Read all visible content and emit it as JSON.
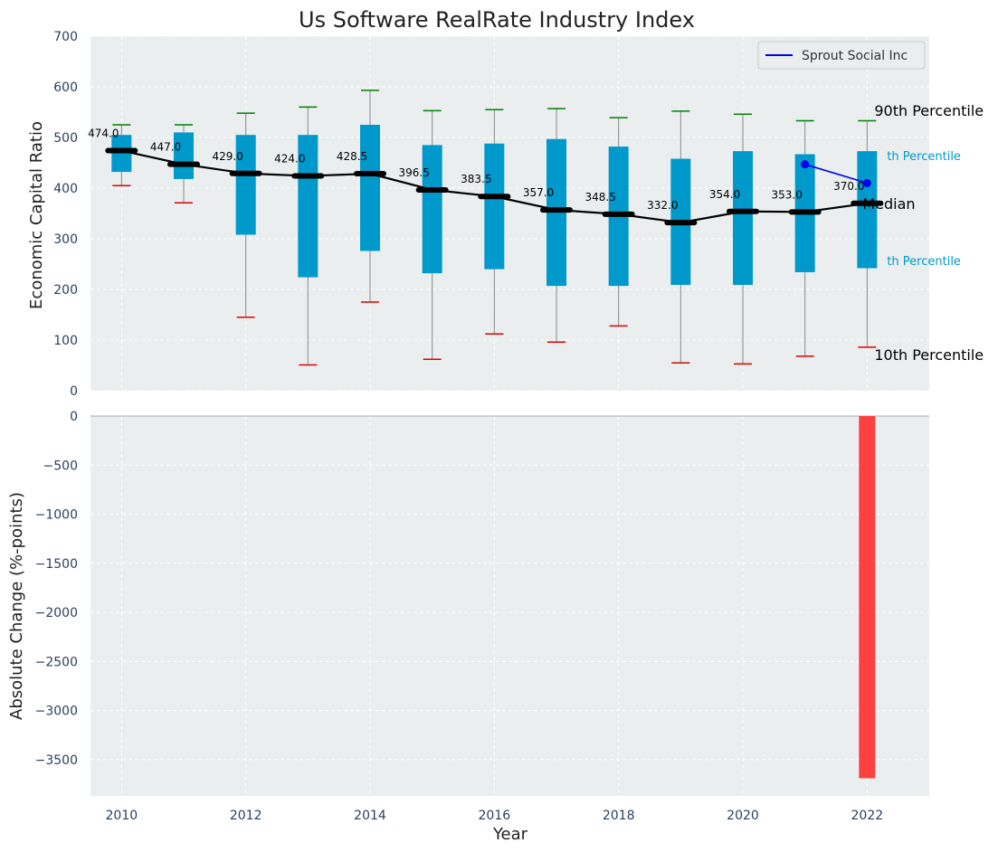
{
  "chart_data": [
    {
      "type": "box",
      "title": "Us Software RealRate Industry Index",
      "ylabel": "Economic Capital Ratio",
      "ylim": [
        0,
        700
      ],
      "yticks": [
        0,
        100,
        200,
        300,
        400,
        500,
        600,
        700
      ],
      "grid": true,
      "legend": {
        "position": "top-right",
        "entries": [
          "Sprout Social Inc"
        ]
      },
      "years": [
        2010,
        2011,
        2012,
        2013,
        2014,
        2015,
        2016,
        2017,
        2018,
        2019,
        2020,
        2021,
        2022
      ],
      "p90": [
        525,
        525,
        548,
        560,
        593,
        553,
        555,
        557,
        539,
        552,
        546,
        533,
        533
      ],
      "q3": [
        505,
        510,
        505,
        505,
        525,
        485,
        488,
        497,
        482,
        458,
        473,
        467,
        473
      ],
      "median": [
        474.0,
        447.0,
        429.0,
        424.0,
        428.5,
        396.5,
        383.5,
        357.0,
        348.5,
        332.0,
        354.0,
        353.0,
        370.0
      ],
      "median_labels": [
        "474.0",
        "447.0",
        "429.0",
        "424.0",
        "428.5",
        "396.5",
        "383.5",
        "357.0",
        "348.5",
        "332.0",
        "354.0",
        "353.0",
        "370.0"
      ],
      "q1": [
        432,
        418,
        308,
        224,
        276,
        232,
        240,
        207,
        207,
        209,
        209,
        234,
        242
      ],
      "p10": [
        405,
        371,
        145,
        51,
        175,
        62,
        112,
        96,
        128,
        55,
        53,
        68,
        86
      ],
      "company": {
        "name": "Sprout Social Inc",
        "x": [
          2021,
          2022
        ],
        "y": [
          447,
          410
        ]
      },
      "annotations": {
        "p90": "90th Percentile",
        "p75": "th Percentile",
        "median": "Median",
        "p25": "th Percentile",
        "p10": "10th Percentile"
      },
      "colors": {
        "box": "#0099cc",
        "median": "#000000",
        "p90": "#008000",
        "p10": "#dd0000",
        "company": "#0000ee",
        "bg": "#eaeeef"
      }
    },
    {
      "type": "bar",
      "xlabel": "Year",
      "ylabel": "Absolute Change (%-points)",
      "ylim": [
        -3870,
        0
      ],
      "yticks": [
        0,
        -500,
        -1000,
        -1500,
        -2000,
        -2500,
        -3000,
        -3500
      ],
      "ytick_labels": [
        "0",
        "−500",
        "−1000",
        "−1500",
        "−2000",
        "−2500",
        "−3000",
        "−3500"
      ],
      "xticks": [
        2010,
        2012,
        2014,
        2016,
        2018,
        2020,
        2022
      ],
      "x": [
        2022
      ],
      "values": [
        -3690
      ],
      "colors": {
        "bar": "#ff4040"
      }
    }
  ]
}
